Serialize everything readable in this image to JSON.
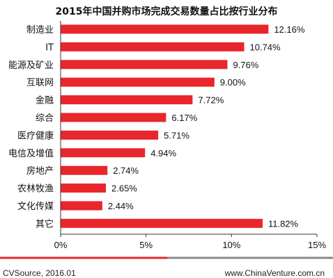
{
  "chart_data": {
    "type": "bar",
    "orientation": "horizontal",
    "title": "2015年中国并购市场完成交易数量占比按行业分布",
    "categories": [
      "制造业",
      "IT",
      "能源及矿业",
      "互联网",
      "金融",
      "综合",
      "医疗健康",
      "电信及增值",
      "房地产",
      "农林牧渔",
      "文化传媒",
      "其它"
    ],
    "values": [
      12.16,
      10.74,
      9.76,
      9.0,
      7.72,
      6.17,
      5.71,
      4.94,
      2.74,
      2.65,
      2.44,
      11.82
    ],
    "value_labels": [
      "12.16%",
      "10.74%",
      "9.76%",
      "9.00%",
      "7.72%",
      "6.17%",
      "5.71%",
      "4.94%",
      "2.74%",
      "2.65%",
      "2.44%",
      "11.82%"
    ],
    "xlim": [
      0,
      15
    ],
    "xticks": [
      0,
      5,
      10,
      15
    ],
    "xtick_labels": [
      "0%",
      "5%",
      "10%",
      "15%"
    ],
    "grid": false,
    "bar_color": "#e8262b",
    "separator_colors": [
      "#e8262b",
      "#888888"
    ]
  },
  "footer": {
    "source": "CVSource, 2016.01",
    "website": "www.ChinaVenture.com.cn"
  }
}
